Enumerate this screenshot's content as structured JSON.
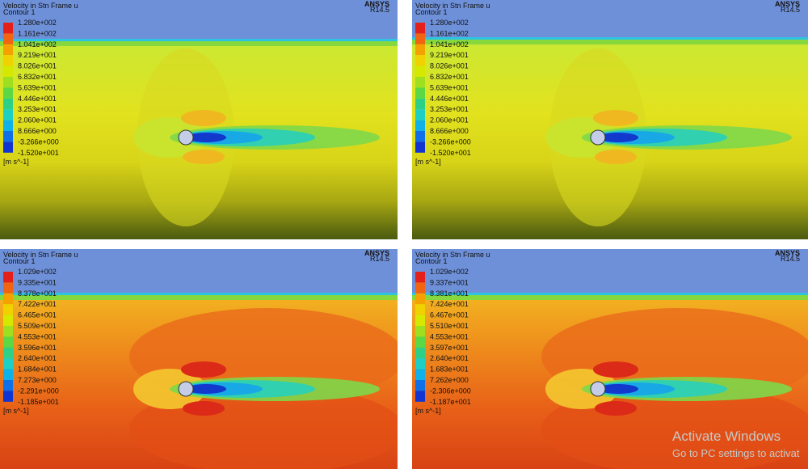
{
  "panels": [
    {
      "title": "Velocity in Stn Frame u",
      "subtitle": "Contour 1",
      "logo": "ANSYS",
      "version": "R14.5",
      "unit": "[m s^-1]",
      "legend": [
        "1.280e+002",
        "1.161e+002",
        "1.041e+002",
        "9.219e+001",
        "8.026e+001",
        "6.832e+001",
        "5.639e+001",
        "4.446e+001",
        "3.253e+001",
        "2.060e+001",
        "8.666e+000",
        "-3.266e+000",
        "-1.520e+001"
      ]
    },
    {
      "title": "Velocity in Stn Frame u",
      "subtitle": "Contour 1",
      "logo": "ANSYS",
      "version": "R14.5",
      "unit": "[m s^-1]",
      "legend": [
        "1.280e+002",
        "1.161e+002",
        "1.041e+002",
        "9.219e+001",
        "8.026e+001",
        "6.832e+001",
        "5.639e+001",
        "4.446e+001",
        "3.253e+001",
        "2.060e+001",
        "8.666e+000",
        "-3.266e+000",
        "-1.520e+001"
      ]
    },
    {
      "title": "Velocity in Stn Frame u",
      "subtitle": "Contour 1",
      "logo": "ANSYS",
      "version": "R14.5",
      "unit": "[m s^-1]",
      "legend": [
        "1.029e+002",
        "9.335e+001",
        "8.378e+001",
        "7.422e+001",
        "6.465e+001",
        "5.509e+001",
        "4.553e+001",
        "3.596e+001",
        "2.640e+001",
        "1.684e+001",
        "7.273e+000",
        "-2.291e+000",
        "-1.185e+001"
      ]
    },
    {
      "title": "Velocity in Stn Frame u",
      "subtitle": "Contour 1",
      "logo": "ANSYS",
      "version": "R14.5",
      "unit": "[m s^-1]",
      "legend": [
        "1.029e+002",
        "9.337e+001",
        "8.381e+001",
        "7.424e+001",
        "6.467e+001",
        "5.510e+001",
        "4.553e+001",
        "3.597e+001",
        "2.640e+001",
        "1.683e+001",
        "7.262e+000",
        "-2.306e+000",
        "-1.187e+001"
      ]
    }
  ],
  "watermark": {
    "title": "Activate Windows",
    "subtitle": "Go to PC settings to activat"
  }
}
